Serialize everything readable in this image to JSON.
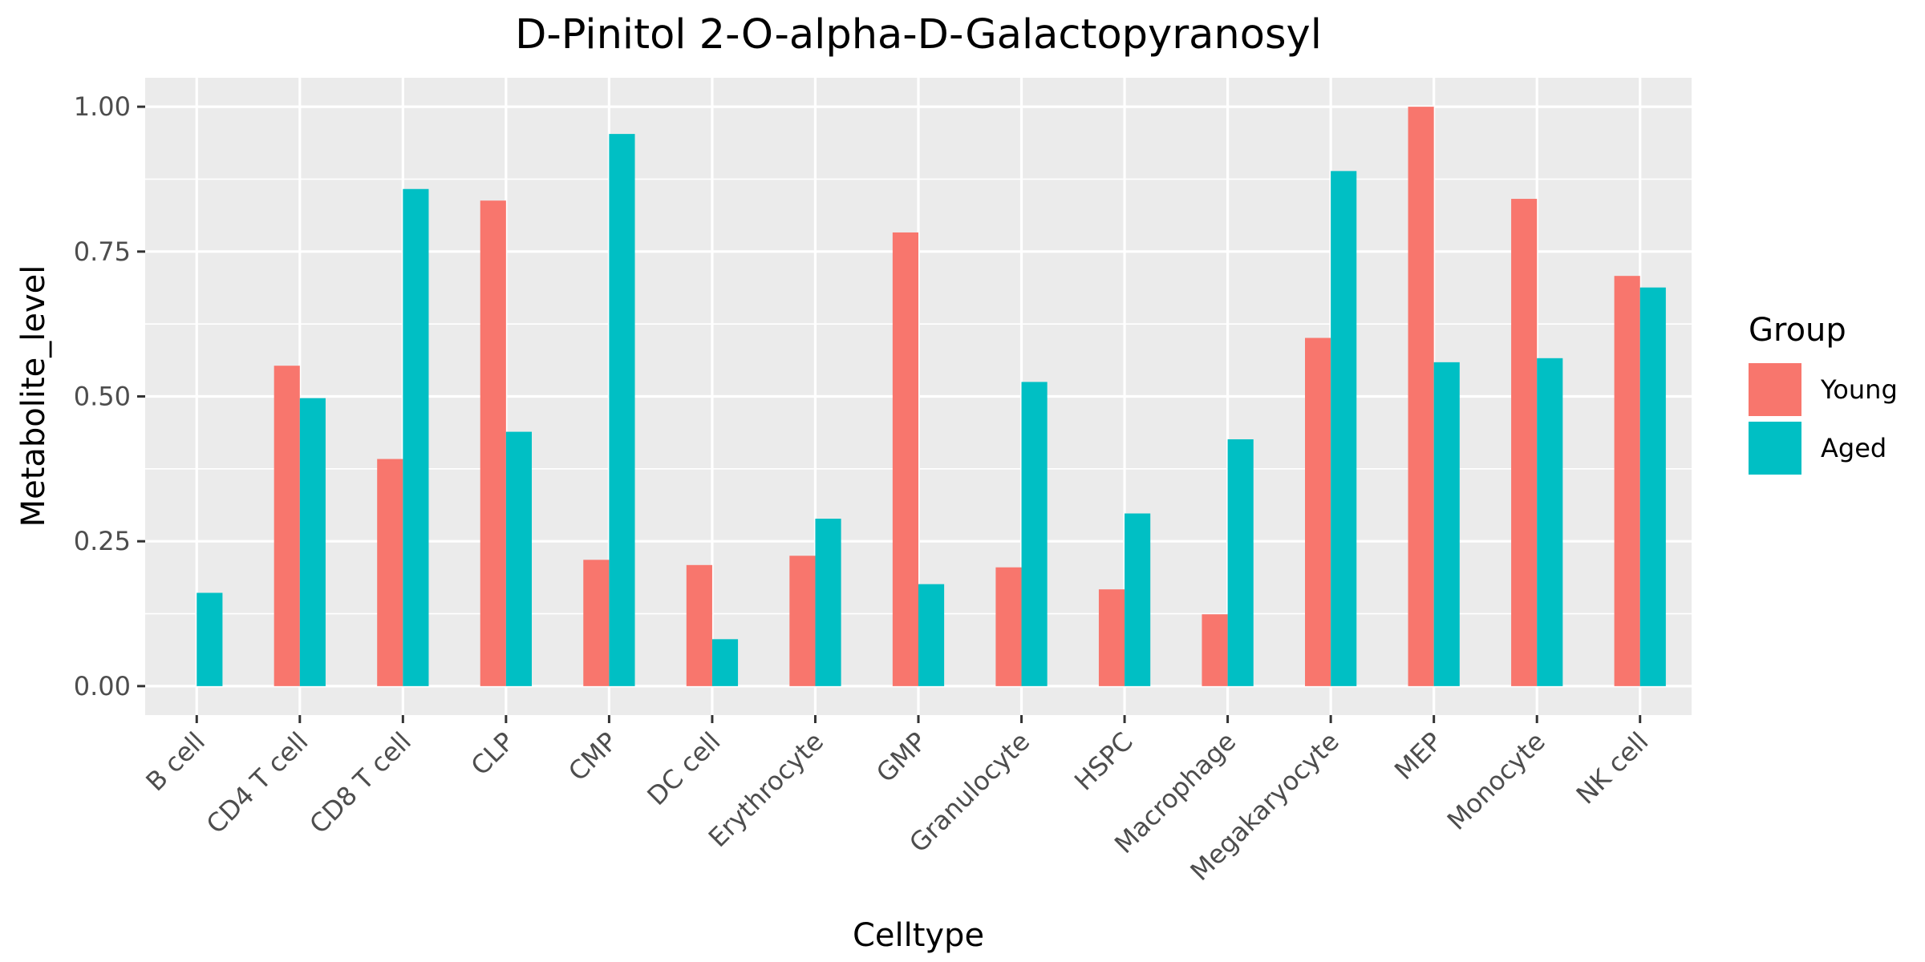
{
  "chart_data": {
    "type": "bar",
    "title": "D-Pinitol 2-O-alpha-D-Galactopyranosyl",
    "xlabel": "Celltype",
    "ylabel": "Metabolite_level",
    "categories": [
      "B cell",
      "CD4 T cell",
      "CD8 T cell",
      "CLP",
      "CMP",
      "DC cell",
      "Erythrocyte",
      "GMP",
      "Granulocyte",
      "HSPC",
      "Macrophage",
      "Megakaryocyte",
      "MEP",
      "Monocyte",
      "NK cell"
    ],
    "series": [
      {
        "name": "Young",
        "color": "#F8766D",
        "values": [
          null,
          0.553,
          0.392,
          0.838,
          0.218,
          0.209,
          0.225,
          0.783,
          0.205,
          0.167,
          0.124,
          0.601,
          1.0,
          0.841,
          0.708
        ]
      },
      {
        "name": "Aged",
        "color": "#00BFC4",
        "values": [
          0.161,
          0.497,
          0.858,
          0.439,
          0.953,
          0.081,
          0.289,
          0.176,
          0.525,
          0.298,
          0.426,
          0.889,
          0.559,
          0.566,
          0.688
        ]
      }
    ],
    "ylim": [
      -0.05,
      1.05
    ],
    "yticks": [
      0.0,
      0.25,
      0.5,
      0.75,
      1.0
    ],
    "ytick_labels": [
      "0.00",
      "0.25",
      "0.50",
      "0.75",
      "1.00"
    ],
    "grid": true,
    "legend": {
      "title": "Group",
      "position": "right"
    },
    "panel_background": "#EBEBEB",
    "grid_color": "#FFFFFF"
  }
}
